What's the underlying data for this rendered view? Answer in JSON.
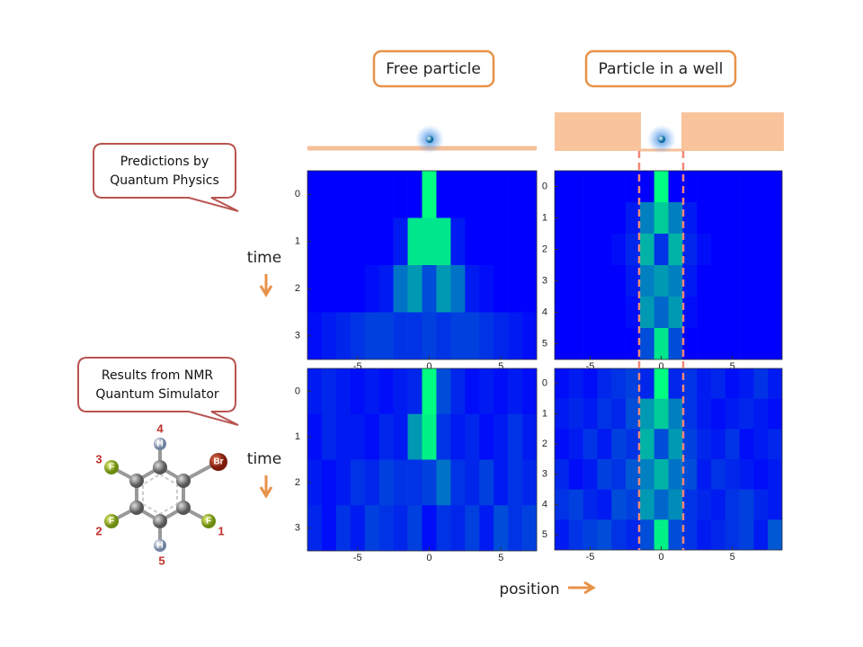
{
  "panel_titles": [
    "Free particle",
    "Particle in a well"
  ],
  "callouts": [
    [
      "Predictions by",
      "Quantum Physics"
    ],
    [
      "Results from NMR",
      "Quantum Simulator"
    ]
  ],
  "row_labels": [
    "time",
    "time"
  ],
  "x_label": "position",
  "molecule": {
    "atoms": [
      {
        "symbol": "H",
        "number": "4"
      },
      {
        "symbol": "Br"
      },
      {
        "symbol": "F",
        "number": "3"
      },
      {
        "symbol": "F",
        "number": "2"
      },
      {
        "symbol": "F",
        "number": "1"
      },
      {
        "symbol": "H",
        "number": "5"
      }
    ]
  },
  "chart_data": [
    {
      "type": "heatmap",
      "color_low": "#0000ff",
      "color_high": "#00ff80",
      "x": [
        -8,
        -7,
        -6,
        -5,
        -4,
        -3,
        -2,
        -1,
        0,
        1,
        2,
        3,
        4,
        5,
        6,
        7
      ],
      "y": [
        0,
        1,
        2,
        3
      ],
      "xlim": [
        -8.5,
        7.5
      ],
      "xticks": [
        -5,
        0,
        5
      ],
      "ylim": [
        -0.5,
        3.5
      ],
      "yticks": [
        0,
        1,
        2,
        3
      ],
      "values": [
        [
          0,
          0,
          0,
          0,
          0,
          0,
          0,
          0,
          1,
          0,
          0,
          0,
          0,
          0,
          0,
          0
        ],
        [
          0,
          0,
          0,
          0,
          0,
          0,
          0.1,
          0.9,
          0.9,
          0.9,
          0.1,
          0,
          0,
          0,
          0,
          0
        ],
        [
          0,
          0,
          0,
          0,
          0.05,
          0.1,
          0.45,
          0.6,
          0.3,
          0.6,
          0.45,
          0.1,
          0.05,
          0,
          0,
          0
        ],
        [
          0.05,
          0.1,
          0.15,
          0.2,
          0.25,
          0.25,
          0.2,
          0.2,
          0.25,
          0.2,
          0.25,
          0.25,
          0.2,
          0.15,
          0.1,
          0.05
        ]
      ]
    },
    {
      "type": "heatmap",
      "color_low": "#0000ff",
      "color_high": "#00ff80",
      "x": [
        -7,
        -6,
        -5,
        -4,
        -3,
        -2,
        -1,
        0,
        1,
        2,
        3,
        4,
        5,
        6,
        7,
        8
      ],
      "y": [
        0,
        1,
        2,
        3,
        4,
        5
      ],
      "xlim": [
        -7.5,
        8.5
      ],
      "xticks": [
        -5,
        0,
        5
      ],
      "ylim": [
        -0.5,
        5.5
      ],
      "yticks": [
        0,
        1,
        2,
        3,
        4,
        5
      ],
      "values": [
        [
          0,
          0,
          0,
          0,
          0,
          0,
          0,
          1,
          0,
          0,
          0,
          0,
          0,
          0,
          0,
          0
        ],
        [
          0,
          0,
          0,
          0,
          0,
          0.1,
          0.5,
          0.8,
          0.5,
          0.1,
          0,
          0,
          0,
          0,
          0,
          0
        ],
        [
          0,
          0,
          0,
          0,
          0.05,
          0.15,
          0.7,
          0.2,
          0.7,
          0.15,
          0.05,
          0,
          0,
          0,
          0,
          0
        ],
        [
          0,
          0,
          0,
          0,
          0,
          0.1,
          0.5,
          0.6,
          0.5,
          0.1,
          0,
          0,
          0,
          0,
          0,
          0
        ],
        [
          0,
          0,
          0,
          0,
          0,
          0.05,
          0.6,
          0.4,
          0.6,
          0.05,
          0,
          0,
          0,
          0,
          0,
          0
        ],
        [
          0,
          0,
          0,
          0,
          0,
          0,
          0.3,
          0.9,
          0.3,
          0,
          0,
          0,
          0,
          0,
          0,
          0
        ]
      ]
    },
    {
      "type": "heatmap",
      "color_low": "#0000ff",
      "color_high": "#00ff80",
      "x": [
        -8,
        -7,
        -6,
        -5,
        -4,
        -3,
        -2,
        -1,
        0,
        1,
        2,
        3,
        4,
        5,
        6,
        7
      ],
      "y": [
        0,
        1,
        2,
        3
      ],
      "xlim": [
        -8.5,
        7.5
      ],
      "xticks": [
        -5,
        0,
        5
      ],
      "ylim": [
        -0.5,
        3.5
      ],
      "yticks": [
        0,
        1,
        2,
        3
      ],
      "values": [
        [
          0.1,
          0.15,
          0.1,
          0.05,
          0.1,
          0.05,
          0.1,
          0.15,
          1,
          0.3,
          0.15,
          0.05,
          0.1,
          0.05,
          0.1,
          0.05
        ],
        [
          0.05,
          0.15,
          0.1,
          0.1,
          0.05,
          0.15,
          0.1,
          0.6,
          0.95,
          0.2,
          0.1,
          0.15,
          0.05,
          0.1,
          0.2,
          0.1
        ],
        [
          0.1,
          0.05,
          0.1,
          0.2,
          0.15,
          0.25,
          0.2,
          0.2,
          0.25,
          0.45,
          0.2,
          0.15,
          0.25,
          0.1,
          0.2,
          0.15
        ],
        [
          0.15,
          0.05,
          0.2,
          0.1,
          0.25,
          0.2,
          0.15,
          0.25,
          0.05,
          0.2,
          0.15,
          0.25,
          0.1,
          0.3,
          0.2,
          0.25
        ]
      ]
    },
    {
      "type": "heatmap",
      "color_low": "#0000ff",
      "color_high": "#00ff80",
      "x": [
        -7,
        -6,
        -5,
        -4,
        -3,
        -2,
        -1,
        0,
        1,
        2,
        3,
        4,
        5,
        6,
        7,
        8
      ],
      "y": [
        0,
        1,
        2,
        3,
        4,
        5
      ],
      "xlim": [
        -7.5,
        8.5
      ],
      "xticks": [
        -5,
        0,
        5
      ],
      "ylim": [
        -0.5,
        5.5
      ],
      "yticks": [
        0,
        1,
        2,
        3,
        4,
        5
      ],
      "values": [
        [
          0.05,
          0.1,
          0.05,
          0.15,
          0.2,
          0.25,
          0.15,
          1,
          0.15,
          0.2,
          0.1,
          0.15,
          0.05,
          0.1,
          0.2,
          0.1
        ],
        [
          0.1,
          0.15,
          0.1,
          0.2,
          0.15,
          0.3,
          0.6,
          0.8,
          0.5,
          0.2,
          0.1,
          0.05,
          0.1,
          0.15,
          0.1,
          0.05
        ],
        [
          0.05,
          0.1,
          0.2,
          0.1,
          0.25,
          0.2,
          0.7,
          0.3,
          0.6,
          0.25,
          0.15,
          0.1,
          0.2,
          0.05,
          0.1,
          0.15
        ],
        [
          0.15,
          0.05,
          0.1,
          0.25,
          0.2,
          0.35,
          0.5,
          0.7,
          0.45,
          0.3,
          0.1,
          0.2,
          0.15,
          0.1,
          0.05,
          0.1
        ],
        [
          0.2,
          0.25,
          0.15,
          0.1,
          0.3,
          0.25,
          0.6,
          0.4,
          0.55,
          0.2,
          0.15,
          0.1,
          0.2,
          0.25,
          0.15,
          0.1
        ],
        [
          0.1,
          0.2,
          0.25,
          0.3,
          0.2,
          0.15,
          0.3,
          0.95,
          0.3,
          0.2,
          0.1,
          0.15,
          0.2,
          0.25,
          0.1,
          0.35
        ]
      ]
    }
  ]
}
